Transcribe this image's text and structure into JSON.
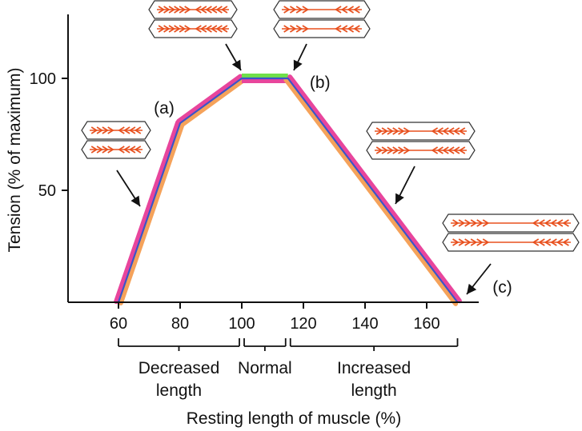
{
  "chart_data": {
    "type": "line",
    "xlabel": "Resting length of muscle (%)",
    "ylabel": "Tension (% of maximum)",
    "xlim": [
      40,
      180
    ],
    "ylim": [
      0,
      130
    ],
    "x_ticks": [
      "60",
      "80",
      "100",
      "120",
      "140",
      "160"
    ],
    "x_tick_values": [
      60,
      80,
      100,
      120,
      140,
      160
    ],
    "y_ticks": [
      "50",
      "100"
    ],
    "y_tick_values": [
      50,
      100
    ],
    "series": [
      {
        "x": [
          60,
          80,
          100,
          115,
          170
        ],
        "y": [
          0,
          80,
          100,
          100,
          0
        ]
      }
    ],
    "annotations": [
      {
        "label": "(a)",
        "x": 80,
        "y": 80
      },
      {
        "label": "(b)",
        "x": 115,
        "y": 100
      },
      {
        "label": "(c)",
        "x": 170,
        "y": 0
      }
    ],
    "ranges": [
      {
        "label_lines": [
          "Decreased",
          "length"
        ],
        "from": 60,
        "to": 100
      },
      {
        "label_lines": [
          "Normal"
        ],
        "from": 100,
        "to": 115
      },
      {
        "label_lines": [
          "Increased",
          "length"
        ],
        "from": 115,
        "to": 170
      }
    ],
    "colors": {
      "line": "#3a55c9",
      "band_magenta": "#e8459c",
      "band_orange": "#f5a25a",
      "band_green": "#6fe04a",
      "filament": "#e8501e",
      "outline": "#333333",
      "axis": "#111111"
    }
  }
}
